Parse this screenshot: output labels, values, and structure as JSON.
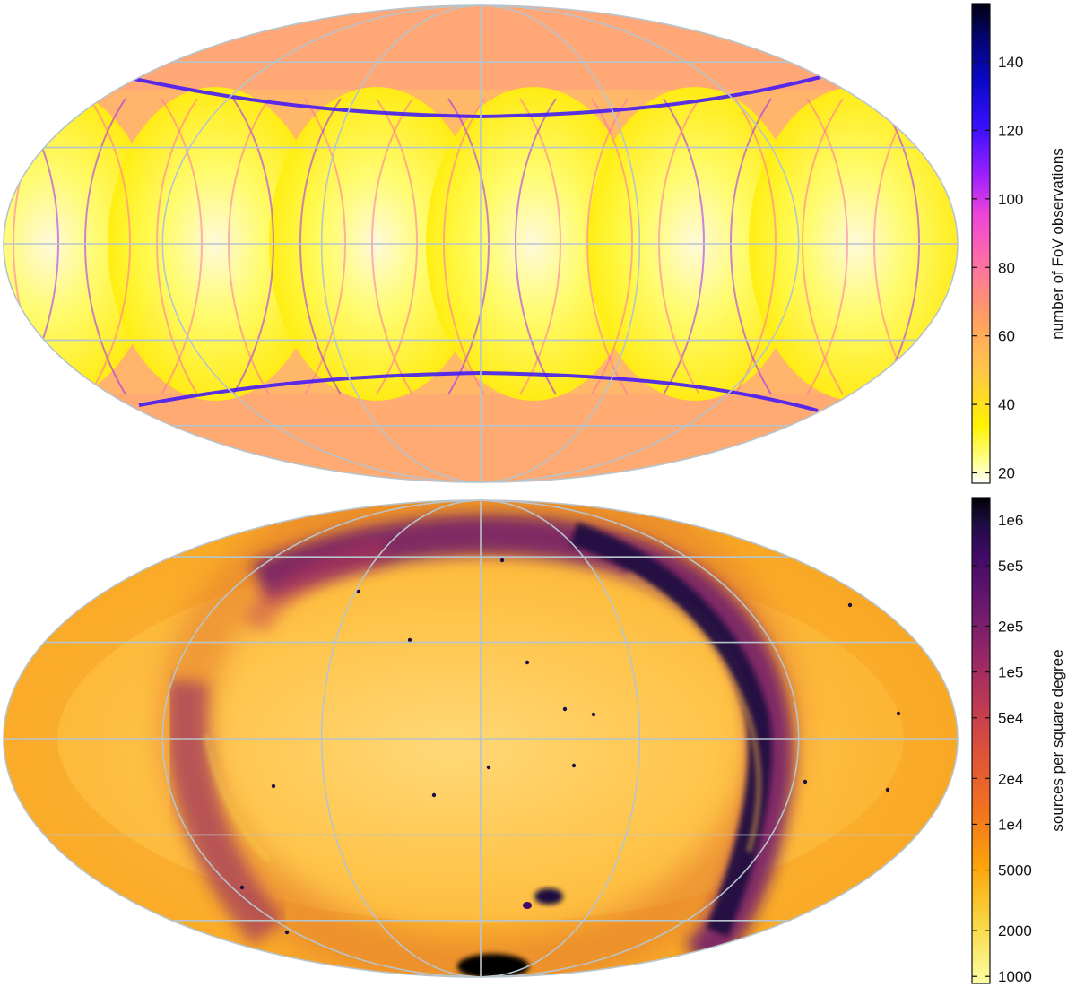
{
  "chart_data": [
    {
      "type": "heatmap",
      "projection": "mollweide",
      "title": "",
      "grid": true,
      "grid_color": "#b8c4cc",
      "colormap": "gnuplot2 (reversed): white -> yellow -> orange -> pink -> purple -> blue -> black",
      "colorbar": {
        "label": "number of FoV observations",
        "scale": "linear",
        "range": [
          17,
          157
        ],
        "ticks": [
          20,
          40,
          60,
          80,
          100,
          120,
          140
        ],
        "tick_labels": [
          "20",
          "40",
          "60",
          "80",
          "100",
          "120",
          "140"
        ],
        "placement": "right"
      },
      "description_values": {
        "background_level": 45,
        "minimum_lobe_level": 20,
        "maximum_caustic_level": 150
      }
    },
    {
      "type": "heatmap",
      "projection": "mollweide",
      "title": "",
      "grid": true,
      "grid_color": "#b8c4cc",
      "colormap": "inferno (reversed): pale yellow -> orange -> red -> purple -> black",
      "colorbar": {
        "label": "sources per square degree",
        "scale": "log",
        "range": [
          900,
          1400000
        ],
        "ticks": [
          1000,
          2000,
          5000,
          10000,
          20000,
          50000,
          100000,
          200000,
          500000,
          1000000
        ],
        "tick_labels": [
          "1000",
          "2000",
          "5000",
          "1e4",
          "2e4",
          "5e4",
          "1e5",
          "2e5",
          "5e5",
          "1e6"
        ],
        "placement": "right"
      },
      "description_values": {
        "high_latitude_level": 4000,
        "galactic_plane_level": 500000
      }
    }
  ]
}
